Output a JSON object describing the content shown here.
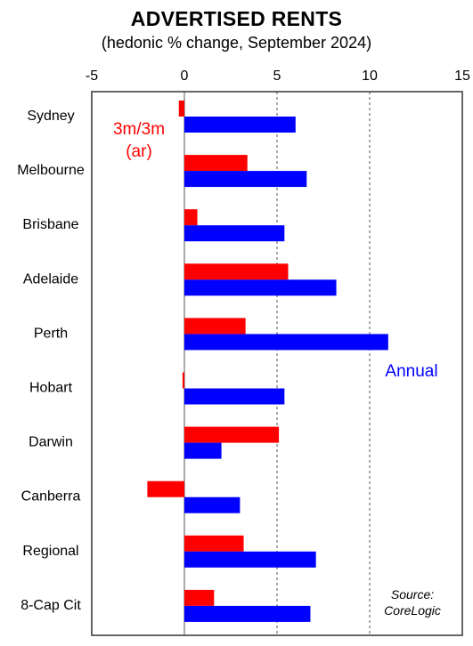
{
  "chart_data": {
    "type": "bar",
    "orientation": "horizontal",
    "title": "ADVERTISED RENTS",
    "subtitle": "(hedonic % change, September  2024)",
    "categories": [
      "Sydney",
      "Melbourne",
      "Brisbane",
      "Adelaide",
      "Perth",
      "Hobart",
      "Darwin",
      "Canberra",
      "Regional",
      "8-Cap Cit"
    ],
    "series": [
      {
        "name": "3m/3m (ar)",
        "color": "#ff0000",
        "values": [
          -0.3,
          3.4,
          0.7,
          5.6,
          3.3,
          -0.1,
          5.1,
          -2.0,
          3.2,
          1.6
        ]
      },
      {
        "name": "Annual",
        "color": "#0000ff",
        "values": [
          6.0,
          6.6,
          5.4,
          8.2,
          11.0,
          5.4,
          2.0,
          3.0,
          7.1,
          6.8
        ]
      }
    ],
    "xlim": [
      -5,
      15
    ],
    "xticks": [
      "-5",
      "0",
      "5",
      "10",
      "15"
    ],
    "xaxis_position": "top",
    "gridlines": "dashed at 5 and 10",
    "annotations": {
      "series1_label_line1": "3m/3m",
      "series1_label_line2": "(ar)",
      "series2_label": "Annual"
    },
    "source_line1": "Source:",
    "source_line2": "CoreLogic"
  }
}
